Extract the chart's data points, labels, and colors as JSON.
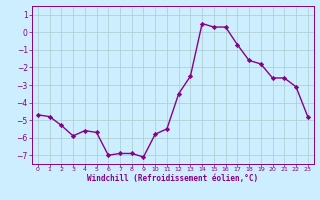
{
  "x": [
    0,
    1,
    2,
    3,
    4,
    5,
    6,
    7,
    8,
    9,
    10,
    11,
    12,
    13,
    14,
    15,
    16,
    17,
    18,
    19,
    20,
    21,
    22,
    23
  ],
  "y": [
    -4.7,
    -4.8,
    -5.3,
    -5.9,
    -5.6,
    -5.7,
    -7.0,
    -6.9,
    -6.9,
    -7.1,
    -5.8,
    -5.5,
    -3.5,
    -2.5,
    0.5,
    0.3,
    0.3,
    -0.7,
    -1.6,
    -1.8,
    -2.6,
    -2.6,
    -3.1,
    -4.8
  ],
  "line_color": "#880088",
  "marker": "D",
  "marker_size": 2.2,
  "bg_color": "#cceeff",
  "grid_color": "#aacccc",
  "axis_color": "#880088",
  "tick_color": "#880088",
  "xlabel": "Windchill (Refroidissement éolien,°C)",
  "xlabel_color": "#880088",
  "ylim": [
    -7.5,
    1.5
  ],
  "yticks": [
    -7,
    -6,
    -5,
    -4,
    -3,
    -2,
    -1,
    0,
    1
  ],
  "xticks": [
    0,
    1,
    2,
    3,
    4,
    5,
    6,
    7,
    8,
    9,
    10,
    11,
    12,
    13,
    14,
    15,
    16,
    17,
    18,
    19,
    20,
    21,
    22,
    23
  ],
  "line_width": 1.0,
  "xlim": [
    -0.5,
    23.5
  ]
}
